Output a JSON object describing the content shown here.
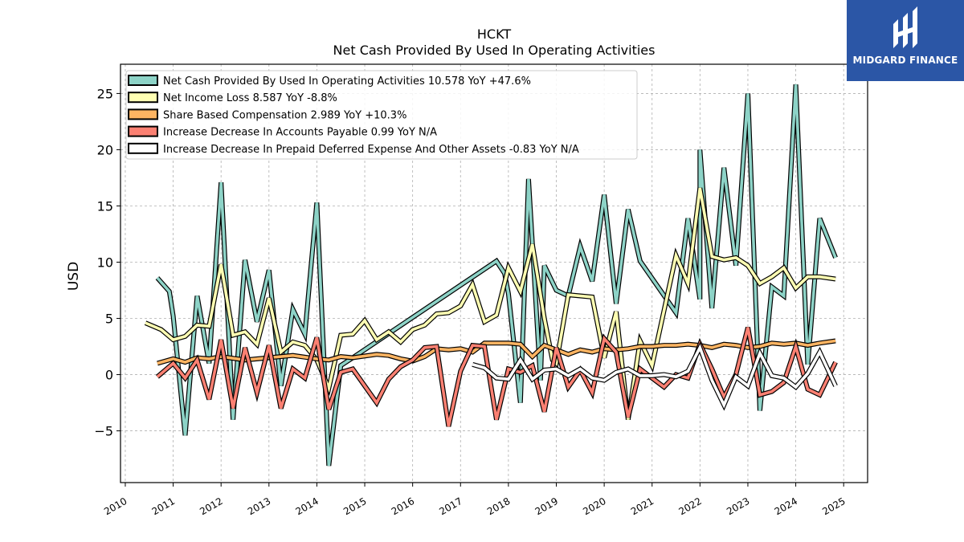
{
  "brand": {
    "name": "MIDGARD FINANCE",
    "color": "#2b56a6"
  },
  "chart_data": {
    "type": "line",
    "title": "HCKT",
    "subtitle": "Net Cash Provided By Used In Operating Activities",
    "xlabel": "",
    "ylabel": "USD",
    "xlim": [
      2009.9,
      2025.5
    ],
    "ylim": [
      -9.6,
      27.6
    ],
    "x_ticks": [
      "2010",
      "2011",
      "2012",
      "2013",
      "2014",
      "2015",
      "2016",
      "2017",
      "2018",
      "2019",
      "2020",
      "2021",
      "2022",
      "2023",
      "2024",
      "2025"
    ],
    "y_ticks": [
      -5,
      0,
      5,
      10,
      15,
      20,
      25
    ],
    "grid": true,
    "legend_position": "top-left",
    "series": [
      {
        "name": "Net Cash Provided By Used In Operating Activities",
        "legend": "Net Cash Provided By Used In Operating Activities  10.578 YoY +47.6%",
        "color": "#8dd3c7",
        "points": [
          [
            2010.67,
            8.6
          ],
          [
            2010.92,
            7.4
          ],
          [
            2011.0,
            5.2
          ],
          [
            2011.25,
            -5.4
          ],
          [
            2011.5,
            7.0
          ],
          [
            2011.75,
            1.0
          ],
          [
            2012.0,
            17.1
          ],
          [
            2012.25,
            -4.0
          ],
          [
            2012.5,
            10.2
          ],
          [
            2012.75,
            4.7
          ],
          [
            2013.0,
            9.3
          ],
          [
            2013.25,
            -1.0
          ],
          [
            2013.5,
            5.8
          ],
          [
            2013.75,
            3.6
          ],
          [
            2014.0,
            15.3
          ],
          [
            2014.25,
            -8.1
          ],
          [
            2014.5,
            0.8
          ],
          [
            2014.75,
            1.5
          ],
          [
            2017.75,
            10.1
          ],
          [
            2017.92,
            9.0
          ],
          [
            2018.0,
            7.2
          ],
          [
            2018.25,
            -2.5
          ],
          [
            2018.42,
            17.4
          ],
          [
            2018.67,
            -0.5
          ],
          [
            2018.75,
            9.7
          ],
          [
            2019.0,
            7.5
          ],
          [
            2019.25,
            7.0
          ],
          [
            2019.5,
            11.4
          ],
          [
            2019.75,
            8.3
          ],
          [
            2020.0,
            16.0
          ],
          [
            2020.25,
            6.3
          ],
          [
            2020.5,
            14.7
          ],
          [
            2020.75,
            10.1
          ],
          [
            2021.5,
            5.5
          ],
          [
            2021.75,
            13.9
          ],
          [
            2022.0,
            6.7
          ],
          [
            2022.0,
            20.0
          ],
          [
            2022.25,
            5.9
          ],
          [
            2022.5,
            18.4
          ],
          [
            2022.75,
            9.7
          ],
          [
            2023.0,
            25.0
          ],
          [
            2023.25,
            -3.2
          ],
          [
            2023.5,
            7.8
          ],
          [
            2023.75,
            7.0
          ],
          [
            2024.0,
            25.8
          ],
          [
            2024.25,
            0.9
          ],
          [
            2024.5,
            13.9
          ],
          [
            2024.83,
            10.4
          ]
        ]
      },
      {
        "name": "Net Income Loss",
        "legend": "Net Income Loss  8.587 YoY -8.8%",
        "color": "#ffffb3",
        "points": [
          [
            2010.42,
            4.6
          ],
          [
            2010.75,
            4.0
          ],
          [
            2011.0,
            3.1
          ],
          [
            2011.25,
            3.4
          ],
          [
            2011.5,
            4.4
          ],
          [
            2011.75,
            4.3
          ],
          [
            2012.0,
            9.8
          ],
          [
            2012.25,
            3.5
          ],
          [
            2012.5,
            3.8
          ],
          [
            2012.75,
            2.7
          ],
          [
            2013.0,
            6.8
          ],
          [
            2013.25,
            2.0
          ],
          [
            2013.5,
            2.9
          ],
          [
            2013.75,
            2.6
          ],
          [
            2014.0,
            1.3
          ],
          [
            2014.25,
            -1.2
          ],
          [
            2014.5,
            3.5
          ],
          [
            2014.75,
            3.6
          ],
          [
            2015.0,
            4.8
          ],
          [
            2015.25,
            3.1
          ],
          [
            2015.5,
            3.8
          ],
          [
            2015.75,
            2.9
          ],
          [
            2016.0,
            4.0
          ],
          [
            2016.25,
            4.4
          ],
          [
            2016.5,
            5.4
          ],
          [
            2016.75,
            5.5
          ],
          [
            2017.0,
            6.1
          ],
          [
            2017.25,
            8.0
          ],
          [
            2017.5,
            4.7
          ],
          [
            2017.75,
            5.3
          ],
          [
            2018.0,
            9.5
          ],
          [
            2018.25,
            7.4
          ],
          [
            2018.5,
            11.6
          ],
          [
            2018.75,
            5.0
          ],
          [
            2018.92,
            1.3
          ],
          [
            2019.0,
            1.0
          ],
          [
            2019.25,
            7.1
          ],
          [
            2019.5,
            7.0
          ],
          [
            2019.75,
            6.9
          ],
          [
            2020.0,
            1.5
          ],
          [
            2020.25,
            5.6
          ],
          [
            2020.5,
            -4.0
          ],
          [
            2020.75,
            3.0
          ],
          [
            2021.0,
            0.8
          ],
          [
            2021.25,
            5.7
          ],
          [
            2021.5,
            10.6
          ],
          [
            2021.75,
            8.1
          ],
          [
            2022.0,
            16.6
          ],
          [
            2022.25,
            10.5
          ],
          [
            2022.5,
            10.2
          ],
          [
            2022.75,
            10.4
          ],
          [
            2023.0,
            9.7
          ],
          [
            2023.25,
            8.1
          ],
          [
            2023.5,
            8.7
          ],
          [
            2023.75,
            9.5
          ],
          [
            2024.0,
            7.7
          ],
          [
            2024.25,
            8.7
          ],
          [
            2024.5,
            8.7
          ],
          [
            2024.83,
            8.5
          ]
        ]
      },
      {
        "name": "Share Based Compensation",
        "legend": "Share Based Compensation  2.989 YoY +10.3%",
        "color": "#fdb462",
        "points": [
          [
            2010.67,
            1.0
          ],
          [
            2011.0,
            1.4
          ],
          [
            2011.25,
            1.1
          ],
          [
            2011.5,
            1.5
          ],
          [
            2011.75,
            1.4
          ],
          [
            2012.0,
            1.6
          ],
          [
            2012.5,
            1.3
          ],
          [
            2013.0,
            1.5
          ],
          [
            2013.5,
            1.7
          ],
          [
            2014.0,
            1.4
          ],
          [
            2014.25,
            1.3
          ],
          [
            2014.5,
            1.6
          ],
          [
            2014.75,
            1.5
          ],
          [
            2015.25,
            1.8
          ],
          [
            2015.5,
            1.7
          ],
          [
            2015.75,
            1.4
          ],
          [
            2016.0,
            1.2
          ],
          [
            2016.25,
            1.6
          ],
          [
            2016.5,
            2.3
          ],
          [
            2016.75,
            2.2
          ],
          [
            2017.0,
            2.3
          ],
          [
            2017.25,
            2.0
          ],
          [
            2017.5,
            2.8
          ],
          [
            2017.75,
            2.8
          ],
          [
            2018.0,
            2.8
          ],
          [
            2018.25,
            2.7
          ],
          [
            2018.5,
            1.6
          ],
          [
            2018.75,
            2.6
          ],
          [
            2019.0,
            2.2
          ],
          [
            2019.25,
            1.8
          ],
          [
            2019.5,
            2.2
          ],
          [
            2019.75,
            2.0
          ],
          [
            2020.0,
            2.3
          ],
          [
            2020.25,
            2.2
          ],
          [
            2020.5,
            2.3
          ],
          [
            2020.75,
            2.5
          ],
          [
            2021.0,
            2.5
          ],
          [
            2021.25,
            2.6
          ],
          [
            2021.5,
            2.6
          ],
          [
            2021.75,
            2.7
          ],
          [
            2022.0,
            2.6
          ],
          [
            2022.25,
            2.4
          ],
          [
            2022.5,
            2.7
          ],
          [
            2022.75,
            2.6
          ],
          [
            2023.0,
            2.4
          ],
          [
            2023.25,
            2.5
          ],
          [
            2023.5,
            2.8
          ],
          [
            2023.75,
            2.7
          ],
          [
            2024.0,
            2.8
          ],
          [
            2024.25,
            2.6
          ],
          [
            2024.5,
            2.8
          ],
          [
            2024.83,
            3.0
          ]
        ]
      },
      {
        "name": "Increase Decrease In Accounts Payable",
        "legend": "Increase Decrease In Accounts Payable  0.99 YoY N/A",
        "color": "#fb8072",
        "points": [
          [
            2010.67,
            -0.2
          ],
          [
            2011.0,
            1.0
          ],
          [
            2011.25,
            -0.3
          ],
          [
            2011.5,
            1.3
          ],
          [
            2011.75,
            -2.2
          ],
          [
            2012.0,
            3.1
          ],
          [
            2012.25,
            -3.0
          ],
          [
            2012.5,
            2.4
          ],
          [
            2012.75,
            -1.6
          ],
          [
            2013.0,
            2.6
          ],
          [
            2013.25,
            -3.0
          ],
          [
            2013.5,
            0.5
          ],
          [
            2013.75,
            -0.3
          ],
          [
            2014.0,
            3.3
          ],
          [
            2014.25,
            -3.1
          ],
          [
            2014.5,
            0.2
          ],
          [
            2014.75,
            0.5
          ],
          [
            2015.25,
            -2.5
          ],
          [
            2015.5,
            -0.4
          ],
          [
            2015.75,
            0.7
          ],
          [
            2016.0,
            1.3
          ],
          [
            2016.25,
            2.4
          ],
          [
            2016.5,
            2.5
          ],
          [
            2016.75,
            -4.6
          ],
          [
            2017.0,
            0.3
          ],
          [
            2017.25,
            2.6
          ],
          [
            2017.5,
            2.5
          ],
          [
            2017.75,
            -4.0
          ],
          [
            2018.0,
            0.5
          ],
          [
            2018.25,
            0.2
          ],
          [
            2018.5,
            0.8
          ],
          [
            2018.75,
            -3.3
          ],
          [
            2019.0,
            2.4
          ],
          [
            2019.25,
            -1.1
          ],
          [
            2019.5,
            0.4
          ],
          [
            2019.75,
            -1.6
          ],
          [
            2020.0,
            3.2
          ],
          [
            2020.25,
            2.0
          ],
          [
            2020.5,
            -3.8
          ],
          [
            2020.75,
            0.5
          ],
          [
            2021.0,
            -0.3
          ],
          [
            2021.25,
            -1.1
          ],
          [
            2021.5,
            0.0
          ],
          [
            2021.75,
            -0.3
          ],
          [
            2022.0,
            2.7
          ],
          [
            2022.25,
            0.5
          ],
          [
            2022.5,
            -2.0
          ],
          [
            2022.75,
            0.0
          ],
          [
            2023.0,
            4.2
          ],
          [
            2023.25,
            -1.8
          ],
          [
            2023.5,
            -1.5
          ],
          [
            2023.75,
            -0.7
          ],
          [
            2024.0,
            2.5
          ],
          [
            2024.25,
            -1.3
          ],
          [
            2024.5,
            -1.8
          ],
          [
            2024.83,
            1.1
          ]
        ]
      },
      {
        "name": "Increase Decrease In Prepaid Deferred Expense And Other Assets",
        "legend": "Increase Decrease In Prepaid Deferred Expense And Other Assets  -0.83 YoY N/A",
        "color": "#ffffff",
        "points": [
          [
            2017.25,
            0.9
          ],
          [
            2017.5,
            0.6
          ],
          [
            2017.75,
            -0.3
          ],
          [
            2018.0,
            -0.4
          ],
          [
            2018.25,
            1.3
          ],
          [
            2018.5,
            -0.4
          ],
          [
            2018.75,
            0.4
          ],
          [
            2019.0,
            0.5
          ],
          [
            2019.25,
            -0.1
          ],
          [
            2019.5,
            0.5
          ],
          [
            2019.75,
            -0.3
          ],
          [
            2020.0,
            -0.5
          ],
          [
            2020.25,
            0.2
          ],
          [
            2020.5,
            0.5
          ],
          [
            2020.75,
            -0.1
          ],
          [
            2021.0,
            -0.1
          ],
          [
            2021.25,
            0.0
          ],
          [
            2021.5,
            -0.2
          ],
          [
            2021.75,
            0.3
          ],
          [
            2022.0,
            2.4
          ],
          [
            2022.25,
            -0.5
          ],
          [
            2022.5,
            -2.7
          ],
          [
            2022.75,
            -0.2
          ],
          [
            2023.0,
            -1.0
          ],
          [
            2023.25,
            1.9
          ],
          [
            2023.5,
            -0.1
          ],
          [
            2023.75,
            -0.3
          ],
          [
            2024.0,
            -1.1
          ],
          [
            2024.25,
            0.1
          ],
          [
            2024.5,
            2.0
          ],
          [
            2024.83,
            -1.0
          ]
        ]
      }
    ]
  }
}
